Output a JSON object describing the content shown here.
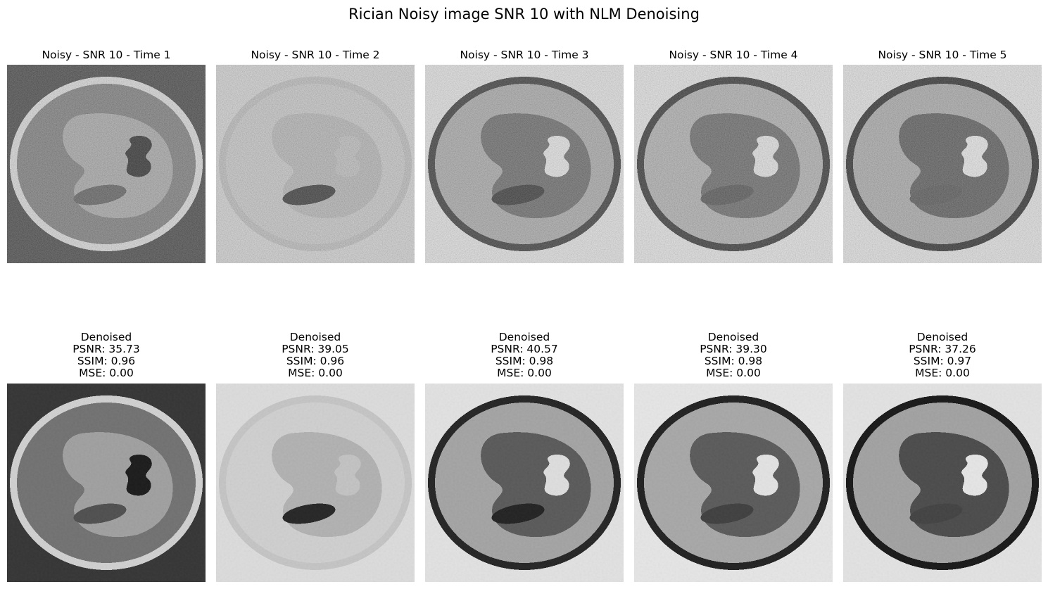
{
  "figure": {
    "title": "Rician Noisy image SNR 10 with NLM Denoising",
    "noisy_panels": [
      {
        "title": "Noisy - SNR 10 - Time 1",
        "tones": {
          "bg": "#2e2e2e",
          "ring": "#d2d2d2",
          "disk": "#6b6b6b",
          "blob": "#9b9b9b",
          "spot": "#121212",
          "ellipse": "#4a4a4a"
        }
      },
      {
        "title": "Noisy - SNR 10 - Time 2",
        "tones": {
          "bg": "#c9c9c9",
          "ring": "#b0b0b0",
          "disk": "#bdbdbd",
          "blob": "#a9a9a9",
          "spot": "#b3b3b3",
          "ellipse": "#1e1e1e"
        }
      },
      {
        "title": "Noisy - SNR 10 - Time 3",
        "tones": {
          "bg": "#dcdcdc",
          "ring": "#202020",
          "disk": "#9c9c9c",
          "blob": "#555555",
          "spot": "#e0e0e0",
          "ellipse": "#1c1c1c"
        }
      },
      {
        "title": "Noisy - SNR 10 - Time 4",
        "tones": {
          "bg": "#dedede",
          "ring": "#1b1b1b",
          "disk": "#a4a4a4",
          "blob": "#555555",
          "spot": "#dedede",
          "ellipse": "#3c3c3c"
        }
      },
      {
        "title": "Noisy - SNR 10 - Time 5",
        "tones": {
          "bg": "#dddddd",
          "ring": "#111111",
          "disk": "#9d9d9d",
          "blob": "#444444",
          "spot": "#e4e4e4",
          "ellipse": "#3e3e3e"
        }
      }
    ],
    "denoised_panels": [
      {
        "title_lines": [
          "Denoised",
          "PSNR: 35.73",
          "SSIM: 0.96",
          "MSE: 0.00"
        ],
        "tones": {
          "bg": "#2f2f2f",
          "ring": "#d0d0d0",
          "disk": "#6e6e6e",
          "blob": "#9e9e9e",
          "spot": "#141414",
          "ellipse": "#4a4a4a"
        }
      },
      {
        "title_lines": [
          "Denoised",
          "PSNR: 39.05",
          "SSIM: 0.96",
          "MSE: 0.00"
        ],
        "tones": {
          "bg": "#dcdcdc",
          "ring": "#c4c4c4",
          "disk": "#cfcfcf",
          "blob": "#b0b0b0",
          "spot": "#c2c2c2",
          "ellipse": "#1f1f1f"
        }
      },
      {
        "title_lines": [
          "Denoised",
          "PSNR: 40.57",
          "SSIM: 0.98",
          "MSE: 0.00"
        ],
        "tones": {
          "bg": "#e2e2e2",
          "ring": "#1e1e1e",
          "disk": "#a2a2a2",
          "blob": "#555555",
          "spot": "#dedede",
          "ellipse": "#1c1c1c"
        }
      },
      {
        "title_lines": [
          "Denoised",
          "PSNR: 39.30",
          "SSIM: 0.98",
          "MSE: 0.00"
        ],
        "tones": {
          "bg": "#e6e6e6",
          "ring": "#1a1a1a",
          "disk": "#a6a6a6",
          "blob": "#565656",
          "spot": "#e3e3e3",
          "ellipse": "#3a3a3a"
        }
      },
      {
        "title_lines": [
          "Denoised",
          "PSNR: 37.26",
          "SSIM: 0.97",
          "MSE: 0.00"
        ],
        "tones": {
          "bg": "#e3e3e3",
          "ring": "#111111",
          "disk": "#a0a0a0",
          "blob": "#464646",
          "spot": "#e6e6e6",
          "ellipse": "#3d3d3d"
        }
      }
    ]
  }
}
